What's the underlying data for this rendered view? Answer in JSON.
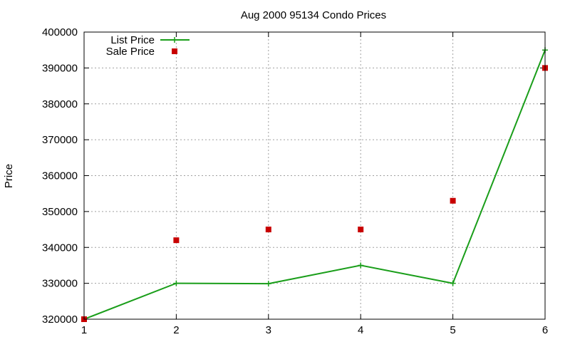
{
  "chart_data": {
    "type": "line",
    "title": "Aug 2000 95134 Condo Prices",
    "xlabel": "",
    "ylabel": "Price",
    "x": [
      1,
      2,
      3,
      4,
      5,
      6
    ],
    "xlim": [
      1,
      6
    ],
    "ylim": [
      320000,
      400000
    ],
    "xticks": [
      1,
      2,
      3,
      4,
      5,
      6
    ],
    "yticks": [
      320000,
      330000,
      340000,
      350000,
      360000,
      370000,
      380000,
      390000,
      400000
    ],
    "grid": true,
    "legend_position": "top-left",
    "series": [
      {
        "name": "List Price",
        "style": "linespoints",
        "color": "#1a9e1a",
        "values": [
          320000,
          330000,
          329900,
          335000,
          330000,
          395000
        ]
      },
      {
        "name": "Sale Price",
        "style": "points",
        "color": "#c80000",
        "values": [
          320000,
          342000,
          345000,
          345000,
          353000,
          390000
        ]
      }
    ]
  }
}
